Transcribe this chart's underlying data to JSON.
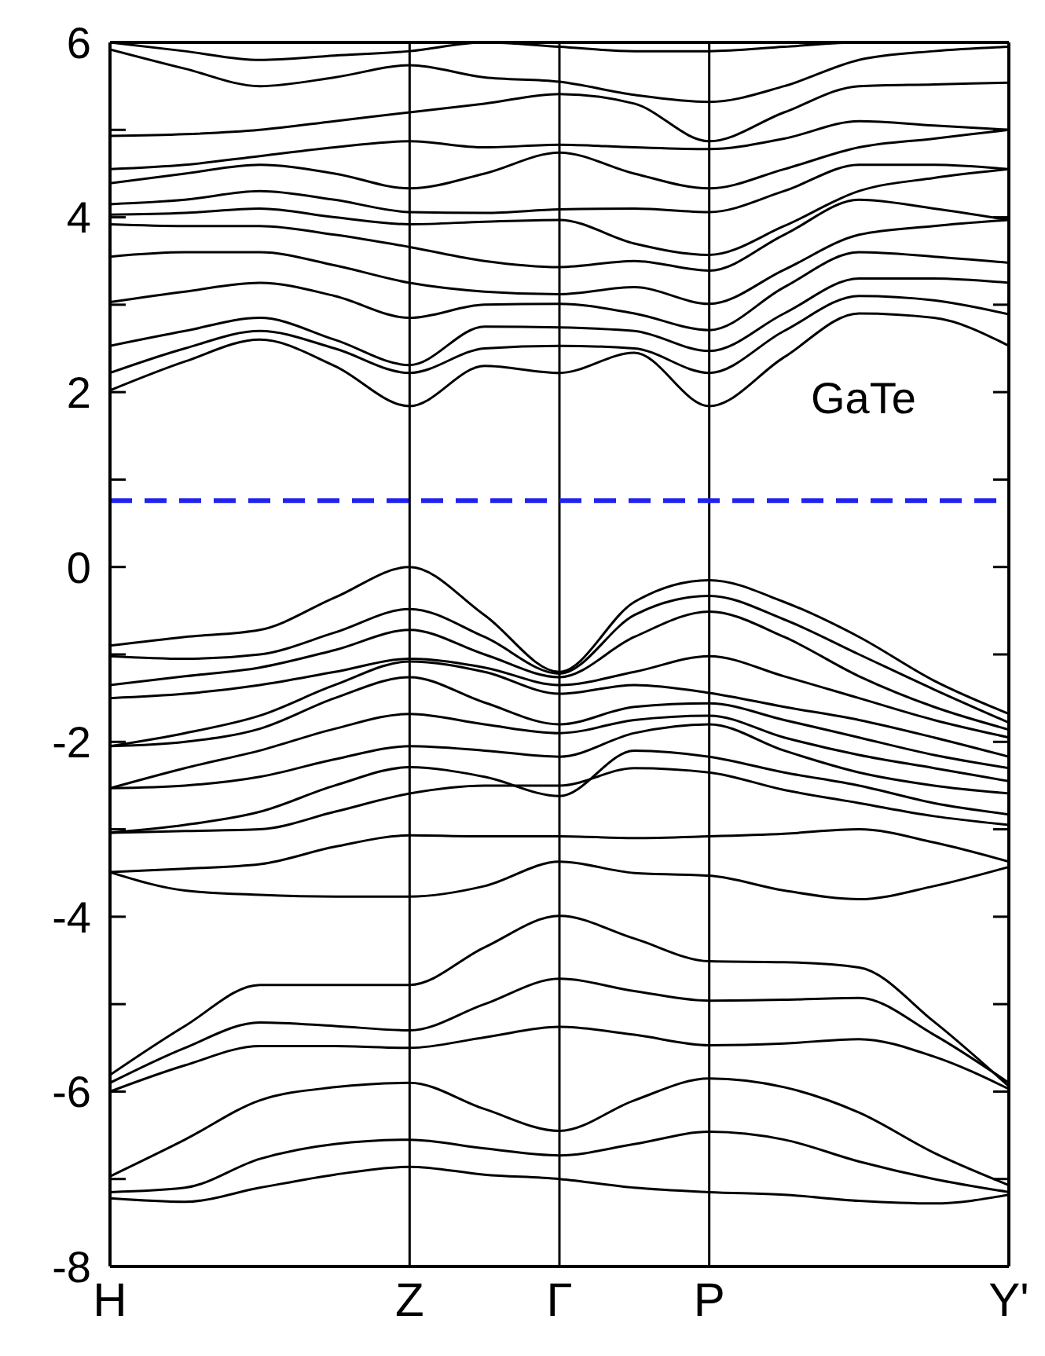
{
  "chart_data": {
    "type": "line",
    "categories": [
      "H",
      null,
      null,
      null,
      "Z",
      null,
      "Γ",
      null,
      "P",
      null,
      null,
      null,
      "Y'"
    ],
    "ylim": [
      -8,
      6
    ],
    "yticks": [
      -8,
      {
        "value": -7,
        "label": null
      },
      -6,
      {
        "value": -5,
        "label": null
      },
      -4,
      {
        "value": -3,
        "label": null
      },
      -2,
      {
        "value": -1,
        "label": null
      },
      0,
      {
        "value": 1,
        "label": null
      },
      2,
      {
        "value": 3,
        "label": null
      },
      4,
      {
        "value": 5,
        "label": null
      },
      6
    ],
    "grid": "x",
    "marker": "none",
    "ref_lines": [
      {
        "axis": "y",
        "value": 0.76,
        "color": "#2222ee",
        "line_style": "dashed"
      }
    ],
    "annotations": [
      "GaTe"
    ],
    "series": [
      {
        "color": "#000000",
        "values": [
          -7.22,
          -7.26,
          -7.1,
          -6.95,
          -6.86,
          -6.95,
          -7.0,
          -7.1,
          -7.15,
          -7.18,
          -7.25,
          -7.28,
          -7.18
        ]
      },
      {
        "color": "#000000",
        "values": [
          -7.15,
          -7.1,
          -6.77,
          -6.6,
          -6.55,
          -6.65,
          -6.73,
          -6.6,
          -6.46,
          -6.55,
          -6.8,
          -7.0,
          -7.15
        ]
      },
      {
        "color": "#000000",
        "values": [
          -6.97,
          -6.55,
          -6.1,
          -5.95,
          -5.9,
          -6.2,
          -6.45,
          -6.1,
          -5.85,
          -5.95,
          -6.24,
          -6.7,
          -7.07
        ]
      },
      {
        "color": "#000000",
        "values": [
          -6.0,
          -5.7,
          -5.48,
          -5.48,
          -5.5,
          -5.38,
          -5.26,
          -5.35,
          -5.47,
          -5.45,
          -5.4,
          -5.6,
          -5.97
        ]
      },
      {
        "color": "#000000",
        "values": [
          -5.9,
          -5.5,
          -5.21,
          -5.25,
          -5.3,
          -5.0,
          -4.71,
          -4.85,
          -4.96,
          -4.95,
          -4.93,
          -5.35,
          -5.9
        ]
      },
      {
        "color": "#000000",
        "values": [
          -5.81,
          -5.25,
          -4.78,
          -4.78,
          -4.78,
          -4.35,
          -3.99,
          -4.25,
          -4.51,
          -4.52,
          -4.58,
          -5.2,
          -5.94
        ]
      },
      {
        "color": "#000000",
        "values": [
          -3.49,
          -3.7,
          -3.75,
          -3.77,
          -3.77,
          -3.65,
          -3.37,
          -3.5,
          -3.53,
          -3.7,
          -3.8,
          -3.65,
          -3.43
        ]
      },
      {
        "color": "#000000",
        "values": [
          -3.49,
          -3.45,
          -3.4,
          -3.2,
          -3.07,
          -3.08,
          -3.08,
          -3.1,
          -3.08,
          -3.05,
          -3.0,
          -3.15,
          -3.37
        ]
      },
      {
        "color": "#000000",
        "values": [
          -3.04,
          -3.02,
          -3.0,
          -2.8,
          -2.59,
          -2.5,
          -2.5,
          -2.3,
          -2.35,
          -2.55,
          -2.7,
          -2.85,
          -2.95
        ]
      },
      {
        "color": "#000000",
        "values": [
          -3.04,
          -2.95,
          -2.8,
          -2.5,
          -2.29,
          -2.4,
          -2.62,
          -2.1,
          -2.17,
          -2.35,
          -2.5,
          -2.7,
          -2.83
        ]
      },
      {
        "color": "#000000",
        "values": [
          -2.53,
          -2.5,
          -2.4,
          -2.2,
          -2.05,
          -2.1,
          -2.17,
          -1.9,
          -1.8,
          -2.1,
          -2.35,
          -2.5,
          -2.59
        ]
      },
      {
        "color": "#000000",
        "values": [
          -2.53,
          -2.3,
          -2.1,
          -1.85,
          -1.68,
          -1.8,
          -1.9,
          -1.75,
          -1.7,
          -1.95,
          -2.15,
          -2.3,
          -2.45
        ]
      },
      {
        "color": "#000000",
        "values": [
          -2.05,
          -2.0,
          -1.85,
          -1.5,
          -1.26,
          -1.55,
          -1.8,
          -1.6,
          -1.56,
          -1.75,
          -1.95,
          -2.15,
          -2.3
        ]
      },
      {
        "color": "#000000",
        "values": [
          -2.05,
          -1.9,
          -1.7,
          -1.35,
          -1.08,
          -1.2,
          -1.45,
          -1.35,
          -1.44,
          -1.6,
          -1.75,
          -1.95,
          -2.17
        ]
      },
      {
        "color": "#000000",
        "values": [
          -1.5,
          -1.45,
          -1.35,
          -1.2,
          -1.05,
          -1.15,
          -1.35,
          -1.2,
          -1.02,
          -1.25,
          -1.5,
          -1.75,
          -1.95
        ]
      },
      {
        "color": "#000000",
        "values": [
          -1.35,
          -1.25,
          -1.15,
          -0.95,
          -0.72,
          -1.0,
          -1.26,
          -0.8,
          -0.51,
          -0.8,
          -1.25,
          -1.6,
          -1.86
        ]
      },
      {
        "color": "#000000",
        "values": [
          -1.02,
          -1.05,
          -1.0,
          -0.75,
          -0.48,
          -0.8,
          -1.22,
          -0.55,
          -0.33,
          -0.6,
          -1.0,
          -1.4,
          -1.78
        ]
      },
      {
        "color": "#000000",
        "values": [
          -0.9,
          -0.8,
          -0.72,
          -0.35,
          0.0,
          -0.55,
          -1.2,
          -0.4,
          -0.15,
          -0.4,
          -0.8,
          -1.3,
          -1.68
        ]
      },
      {
        "color": "#000000",
        "values": [
          2.02,
          2.35,
          2.6,
          2.3,
          1.84,
          2.3,
          2.22,
          2.45,
          1.84,
          2.4,
          2.9,
          2.85,
          2.53
        ]
      },
      {
        "color": "#000000",
        "values": [
          2.22,
          2.5,
          2.7,
          2.5,
          2.22,
          2.5,
          2.53,
          2.5,
          2.22,
          2.7,
          3.1,
          3.05,
          2.89
        ]
      },
      {
        "color": "#000000",
        "values": [
          2.53,
          2.7,
          2.85,
          2.6,
          2.31,
          2.75,
          2.74,
          2.7,
          2.47,
          2.9,
          3.3,
          3.3,
          3.25
        ]
      },
      {
        "color": "#000000",
        "values": [
          3.03,
          3.15,
          3.25,
          3.1,
          2.85,
          3.0,
          3.01,
          2.9,
          2.71,
          3.2,
          3.6,
          3.55,
          3.48
        ]
      },
      {
        "color": "#000000",
        "values": [
          3.55,
          3.6,
          3.6,
          3.45,
          3.25,
          3.15,
          3.12,
          3.2,
          3.01,
          3.4,
          3.8,
          3.9,
          3.97
        ]
      },
      {
        "color": "#000000",
        "values": [
          3.92,
          3.9,
          3.9,
          3.8,
          3.66,
          3.5,
          3.43,
          3.5,
          3.39,
          3.8,
          4.2,
          4.1,
          3.97
        ]
      },
      {
        "color": "#000000",
        "values": [
          4.03,
          4.05,
          4.1,
          4.0,
          3.92,
          3.95,
          3.97,
          3.7,
          3.57,
          3.9,
          4.3,
          4.45,
          4.55
        ]
      },
      {
        "color": "#000000",
        "values": [
          4.15,
          4.2,
          4.3,
          4.2,
          4.06,
          4.05,
          4.09,
          4.1,
          4.06,
          4.3,
          4.6,
          4.6,
          4.55
        ]
      },
      {
        "color": "#000000",
        "values": [
          4.39,
          4.5,
          4.6,
          4.5,
          4.33,
          4.5,
          4.74,
          4.5,
          4.33,
          4.55,
          4.8,
          4.9,
          5.0
        ]
      },
      {
        "color": "#000000",
        "values": [
          4.55,
          4.6,
          4.7,
          4.8,
          4.87,
          4.8,
          4.83,
          4.8,
          4.78,
          4.9,
          5.1,
          5.05,
          5.0
        ]
      },
      {
        "color": "#000000",
        "values": [
          4.93,
          4.95,
          5.0,
          5.1,
          5.2,
          5.3,
          5.41,
          5.3,
          4.87,
          5.2,
          5.5,
          5.52,
          5.54
        ]
      },
      {
        "color": "#000000",
        "values": [
          5.92,
          5.7,
          5.5,
          5.6,
          5.74,
          5.6,
          5.55,
          5.4,
          5.32,
          5.5,
          5.8,
          5.9,
          5.95
        ]
      },
      {
        "color": "#000000",
        "values": [
          6.0,
          5.9,
          5.8,
          5.85,
          5.9,
          6.0,
          5.95,
          5.9,
          5.9,
          5.95,
          6.0,
          6.0,
          6.0
        ]
      }
    ]
  }
}
